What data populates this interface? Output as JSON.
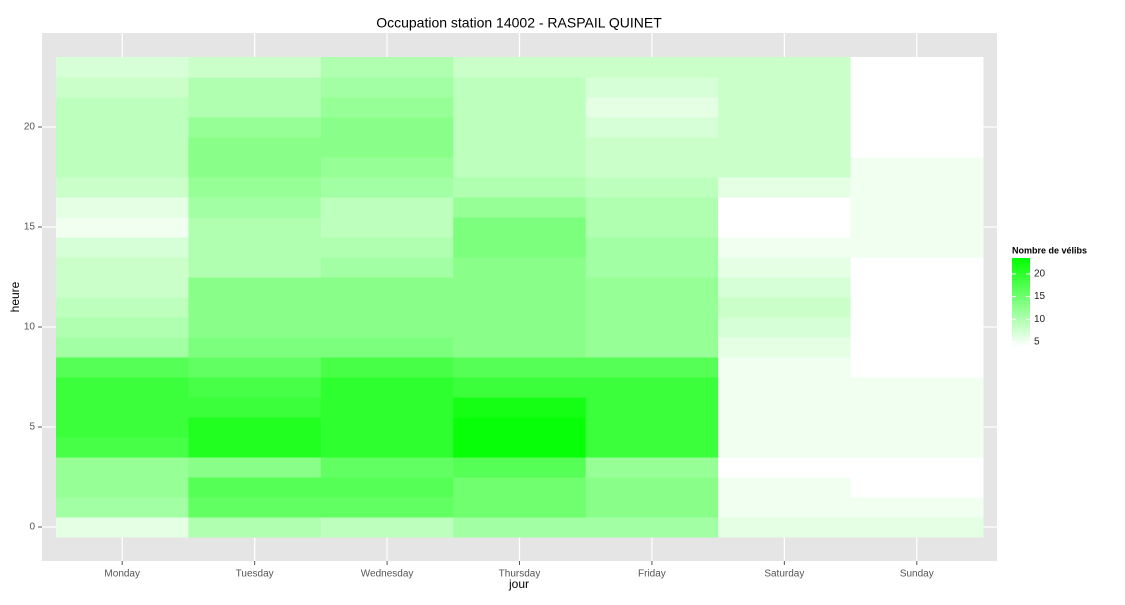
{
  "chart_data": {
    "type": "heatmap",
    "title": "Occupation station 14002 - RASPAIL QUINET",
    "xlabel": "jour",
    "ylabel": "heure",
    "categories": [
      "Monday",
      "Tuesday",
      "Wednesday",
      "Thursday",
      "Friday",
      "Saturday",
      "Sunday"
    ],
    "y": [
      0,
      1,
      2,
      3,
      4,
      5,
      6,
      7,
      8,
      9,
      10,
      11,
      12,
      13,
      14,
      15,
      16,
      17,
      18,
      19,
      20,
      21,
      22,
      23
    ],
    "values": [
      [
        6,
        11,
        12,
        12,
        18,
        19,
        19,
        19,
        17,
        11,
        10,
        9,
        8,
        8,
        7,
        5,
        6,
        8,
        9,
        9,
        9,
        9,
        8,
        7
      ],
      [
        10,
        16,
        17,
        13,
        21,
        21,
        19,
        18,
        16,
        14,
        13,
        13,
        13,
        10,
        10,
        10,
        11,
        12,
        13,
        13,
        12,
        10,
        10,
        8
      ],
      [
        9,
        16,
        17,
        16,
        20,
        20,
        20,
        20,
        18,
        14,
        13,
        13,
        13,
        11,
        10,
        9,
        9,
        11,
        12,
        13,
        13,
        12,
        11,
        10
      ],
      [
        11,
        15,
        15,
        17,
        23,
        23,
        22,
        19,
        17,
        13,
        13,
        13,
        13,
        13,
        14,
        14,
        12,
        10,
        9,
        9,
        9,
        9,
        9,
        8
      ],
      [
        11,
        13,
        13,
        12,
        19,
        19,
        19,
        19,
        17,
        12,
        12,
        12,
        12,
        11,
        11,
        10,
        10,
        9,
        8,
        8,
        7,
        6,
        7,
        8
      ],
      [
        6,
        5,
        5,
        4,
        5,
        5,
        5,
        5,
        5,
        6,
        7,
        8,
        7,
        6,
        5,
        4,
        4,
        6,
        8,
        8,
        8,
        8,
        8,
        8
      ],
      [
        6,
        5,
        4,
        4,
        5,
        5,
        5,
        5,
        4,
        4,
        4,
        4,
        4,
        4,
        5,
        5,
        5,
        5,
        5,
        4,
        4,
        4,
        4,
        4
      ]
    ],
    "ylim": [
      -1.7,
      24.7
    ],
    "yticks": [
      0,
      5,
      10,
      15,
      20
    ],
    "grid": true,
    "legend": {
      "title": "Nombre de vélibs",
      "ticks": [
        5,
        10,
        15,
        20
      ],
      "colorlim": [
        3.9,
        23.5
      ],
      "low_color": "#ffffff",
      "high_color": "#00ff00"
    }
  }
}
